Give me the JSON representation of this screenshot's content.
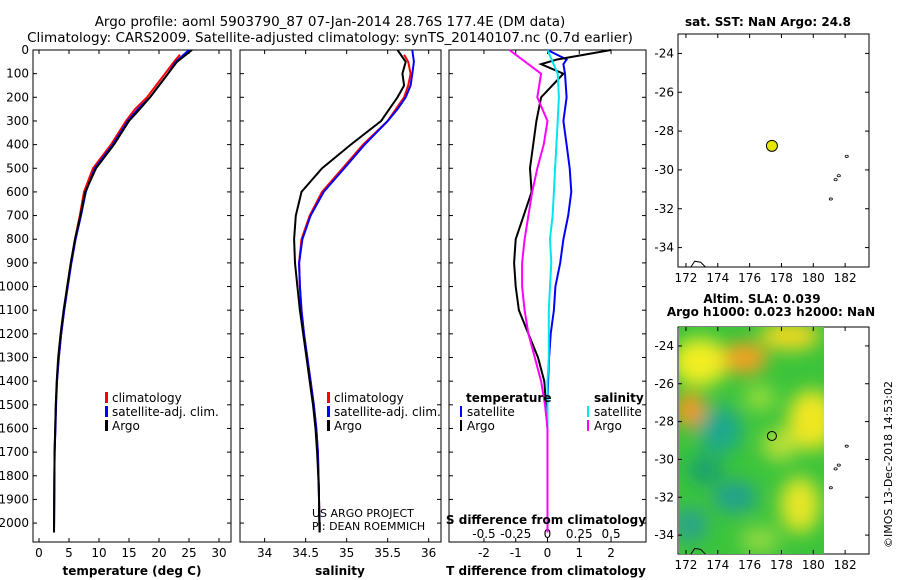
{
  "header": {
    "line1": "Argo profile: aoml 5903790_87 07-Jan-2014 28.76S 177.4E (DM data)",
    "line2": "Climatology: CARS2009. Satellite-adjusted climatology: synTS_20140107.nc (0.7d earlier)"
  },
  "credit": {
    "line1": "US ARGO PROJECT",
    "line2": "PI: DEAN ROEMMICH"
  },
  "stamp": "©IMOS 13-Dec-2018 14:53:02",
  "colors": {
    "climatology": "#ff0000",
    "satellite": "#0000ff",
    "argo": "#000000",
    "sal_sat": "#00e5ee",
    "sal_argo": "#ff00ff",
    "float_marker": "#e6e600"
  },
  "chart_data": [
    {
      "type": "line",
      "name": "temperature-profile",
      "xlabel": "temperature (deg C)",
      "ylabel": "",
      "xlim": [
        -1,
        32
      ],
      "ylim": [
        2080,
        0
      ],
      "xticks": [
        0,
        5,
        10,
        15,
        20,
        25,
        30
      ],
      "yticks": [
        0,
        100,
        200,
        300,
        400,
        500,
        600,
        700,
        800,
        900,
        1000,
        1100,
        1200,
        1300,
        1400,
        1500,
        1600,
        1700,
        1800,
        1900,
        2000
      ],
      "ytick_labels": [
        "0",
        "100",
        "200",
        "300",
        "400",
        "500",
        "600",
        "700",
        "800",
        "900",
        "1000",
        "1100",
        "1200",
        "1300",
        "1400",
        "1500",
        "1600",
        "1700",
        "1800",
        "1900",
        "2000"
      ],
      "legend": [
        "climatology",
        "satellite-adj. clim.",
        "Argo"
      ],
      "legend_position": "lower-right",
      "series": [
        {
          "name": "climatology",
          "color": "#ff0000",
          "x": [
            23.5,
            22.5,
            21,
            19.5,
            18,
            16,
            14.5,
            12,
            9,
            7.5,
            6.8,
            6.0,
            5.3,
            4.7,
            4.2,
            3.7,
            3.3,
            3.0,
            2.8,
            2.7,
            2.6,
            2.55,
            2.5
          ],
          "y": [
            20,
            50,
            100,
            150,
            200,
            250,
            300,
            400,
            500,
            600,
            700,
            800,
            900,
            1000,
            1100,
            1200,
            1300,
            1400,
            1500,
            1600,
            1700,
            1850,
            2040
          ]
        },
        {
          "name": "satellite-adj. clim.",
          "color": "#0000ff",
          "x": [
            25,
            22.8,
            21.5,
            20,
            18.5,
            16.5,
            14.8,
            12.3,
            9.3,
            7.8,
            7.0,
            6.1,
            5.4,
            4.8,
            4.2,
            3.7,
            3.3,
            3.0,
            2.85,
            2.75,
            2.6,
            2.55,
            2.5
          ],
          "y": [
            0,
            50,
            100,
            150,
            200,
            250,
            300,
            400,
            500,
            600,
            700,
            800,
            900,
            1000,
            1100,
            1200,
            1300,
            1400,
            1500,
            1600,
            1700,
            1850,
            2040
          ]
        },
        {
          "name": "Argo",
          "color": "#000000",
          "x": [
            25.5,
            23,
            21.5,
            20,
            18.5,
            16.8,
            15,
            12.5,
            9.5,
            7.7,
            6.9,
            6.0,
            5.3,
            4.7,
            4.1,
            3.6,
            3.2,
            2.95,
            2.8,
            2.7,
            2.6,
            2.55,
            2.5
          ],
          "y": [
            0,
            50,
            100,
            150,
            200,
            250,
            300,
            400,
            500,
            600,
            700,
            800,
            900,
            1000,
            1100,
            1200,
            1300,
            1400,
            1500,
            1600,
            1700,
            1850,
            2040
          ]
        }
      ]
    },
    {
      "type": "line",
      "name": "salinity-profile",
      "xlabel": "salinity",
      "xlim": [
        33.7,
        36.15
      ],
      "ylim": [
        2080,
        0
      ],
      "xticks": [
        34,
        34.5,
        35,
        35.5,
        36
      ],
      "xtick_labels": [
        "34",
        "34.5",
        "35",
        "35.5",
        "36"
      ],
      "legend": [
        "climatology",
        "satellite-adj. clim.",
        "Argo"
      ],
      "legend_position": "lower-right",
      "series": [
        {
          "name": "climatology",
          "color": "#ff0000",
          "x": [
            35.7,
            35.75,
            35.78,
            35.75,
            35.7,
            35.6,
            35.5,
            35.2,
            34.95,
            34.7,
            34.55,
            34.45,
            34.42,
            34.43,
            34.45,
            34.48,
            34.52,
            34.56,
            34.6,
            34.63,
            34.65,
            34.66,
            34.67
          ],
          "y": [
            20,
            50,
            100,
            150,
            200,
            250,
            300,
            400,
            500,
            600,
            700,
            800,
            900,
            1000,
            1100,
            1200,
            1300,
            1400,
            1500,
            1600,
            1700,
            1850,
            2040
          ]
        },
        {
          "name": "satellite-adj. clim.",
          "color": "#0000ff",
          "x": [
            35.8,
            35.82,
            35.8,
            35.78,
            35.72,
            35.62,
            35.5,
            35.22,
            34.97,
            34.72,
            34.56,
            34.46,
            34.42,
            34.43,
            34.45,
            34.48,
            34.52,
            34.56,
            34.6,
            34.63,
            34.65,
            34.66,
            34.67
          ],
          "y": [
            0,
            50,
            100,
            150,
            200,
            250,
            300,
            400,
            500,
            600,
            700,
            800,
            900,
            1000,
            1100,
            1200,
            1300,
            1400,
            1500,
            1600,
            1700,
            1850,
            2040
          ]
        },
        {
          "name": "Argo",
          "color": "#000000",
          "x": [
            35.62,
            35.72,
            35.68,
            35.7,
            35.62,
            35.52,
            35.42,
            35.05,
            34.7,
            34.45,
            34.38,
            34.36,
            34.37,
            34.4,
            34.43,
            34.47,
            34.51,
            34.55,
            34.59,
            34.62,
            34.64,
            34.66,
            34.67
          ],
          "y": [
            0,
            50,
            100,
            150,
            200,
            250,
            300,
            400,
            500,
            600,
            700,
            800,
            900,
            1000,
            1100,
            1200,
            1300,
            1400,
            1500,
            1600,
            1700,
            1850,
            2040
          ]
        }
      ]
    },
    {
      "type": "line",
      "name": "difference-profile",
      "xlabel": "T difference from climatology",
      "xlabel2": "S difference from climatology",
      "xlim": [
        -3.1,
        3.1
      ],
      "ylim": [
        2080,
        0
      ],
      "xticks": [
        -2,
        -1,
        0,
        1,
        2
      ],
      "xticks_salinity": [
        -0.5,
        -0.25,
        0,
        0.25,
        0.5
      ],
      "xtick_labels_salinity": [
        "-0.5",
        "-0.25",
        "0",
        "0.25",
        "0.5"
      ],
      "legend_temperature_title": "temperature",
      "legend_salinity_title": "salinity",
      "legend": [
        "satellite",
        "Argo",
        "satellite",
        "Argo"
      ],
      "series": [
        {
          "name": "T satellite",
          "color": "#0000ff",
          "x": [
            0,
            0.6,
            0.5,
            0.55,
            0.6,
            0.5,
            0.6,
            0.7,
            0.75,
            0.65,
            0.5,
            0.4,
            0.25,
            0.2,
            0.1,
            0.05,
            0.02,
            0.0,
            0.0,
            0.0,
            0.0,
            0.0
          ],
          "y": [
            0,
            40,
            60,
            100,
            200,
            300,
            400,
            500,
            600,
            700,
            800,
            900,
            1000,
            1100,
            1200,
            1300,
            1400,
            1500,
            1600,
            1700,
            1850,
            2040
          ]
        },
        {
          "name": "T Argo",
          "color": "#000000",
          "x": [
            2,
            0.3,
            -0.2,
            0.5,
            -0.2,
            -0.35,
            -0.45,
            -0.55,
            -0.5,
            -0.75,
            -1.0,
            -1.05,
            -1.0,
            -0.9,
            -0.6,
            -0.3,
            -0.1,
            -0.05,
            0.0,
            0.0,
            0.0,
            0.0
          ],
          "y": [
            0,
            40,
            60,
            100,
            200,
            300,
            400,
            500,
            600,
            700,
            800,
            900,
            1000,
            1100,
            1200,
            1300,
            1400,
            1500,
            1600,
            1700,
            1850,
            2040
          ]
        },
        {
          "name": "S satellite",
          "color": "#00e5ee",
          "x": [
            0,
            0.08,
            0.09,
            0.08,
            0.07,
            0.06,
            0.05,
            0.04,
            0.02,
            0.03,
            0.02,
            0.01,
            0.01,
            0.01,
            0.0,
            0.0,
            0.0,
            0.0,
            0.0,
            0.0,
            0.0
          ],
          "y": [
            0,
            100,
            200,
            300,
            400,
            500,
            600,
            700,
            800,
            900,
            1000,
            1100,
            1200,
            1300,
            1400,
            1500,
            1600,
            1700,
            1800,
            1900,
            2040
          ]
        },
        {
          "name": "S Argo",
          "color": "#ff00ff",
          "x": [
            -0.3,
            -0.05,
            -0.08,
            0.0,
            -0.03,
            -0.08,
            -0.12,
            -0.15,
            -0.18,
            -0.2,
            -0.2,
            -0.18,
            -0.15,
            -0.1,
            -0.05,
            -0.02,
            0.0,
            0.0,
            0.0,
            0.0,
            0.0
          ],
          "y": [
            0,
            100,
            200,
            300,
            400,
            500,
            600,
            700,
            800,
            900,
            1000,
            1100,
            1200,
            1300,
            1400,
            1500,
            1600,
            1700,
            1800,
            1900,
            2040
          ]
        }
      ]
    },
    {
      "type": "scatter",
      "name": "sst-map",
      "title": "sat. SST: NaN Argo: 24.8",
      "xlim": [
        171.5,
        183.5
      ],
      "ylim": [
        -35,
        -23
      ],
      "xticks": [
        172,
        174,
        176,
        178,
        180,
        182
      ],
      "yticks": [
        -24,
        -26,
        -28,
        -30,
        -32,
        -34
      ],
      "float_position": {
        "lon": 177.4,
        "lat": -28.76
      },
      "islands": [
        {
          "lon": 182.1,
          "lat": -29.3
        },
        {
          "lon": 181.6,
          "lat": -30.3
        },
        {
          "lon": 181.4,
          "lat": -30.5
        },
        {
          "lon": 181.1,
          "lat": -31.5
        }
      ]
    },
    {
      "type": "heatmap",
      "name": "sla-map",
      "title1": "Altim. SLA: 0.039",
      "title2": "Argo h1000: 0.023 h2000: NaN",
      "xlim": [
        171.5,
        183.5
      ],
      "ylim": [
        -35,
        -23
      ],
      "xticks": [
        172,
        174,
        176,
        178,
        180,
        182
      ],
      "yticks": [
        -24,
        -26,
        -28,
        -30,
        -32,
        -34
      ],
      "data_lon_range": [
        171.5,
        180.5
      ],
      "float_position": {
        "lon": 177.4,
        "lat": -28.76
      },
      "islands": [
        {
          "lon": 182.1,
          "lat": -29.3
        },
        {
          "lon": 181.6,
          "lat": -30.3
        },
        {
          "lon": 181.4,
          "lat": -30.5
        },
        {
          "lon": 181.1,
          "lat": -31.5
        }
      ]
    }
  ]
}
